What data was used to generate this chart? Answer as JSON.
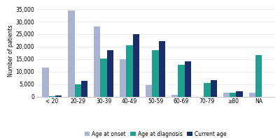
{
  "categories": [
    "< 20",
    "20-29",
    "30-39",
    "40-49",
    "50-59",
    "60-69",
    "70-79",
    "≥80",
    "NA"
  ],
  "age_at_onset": [
    11500,
    34500,
    28000,
    15000,
    4500,
    700,
    0,
    1500,
    1500
  ],
  "age_at_diagnosis": [
    300,
    4800,
    15200,
    20500,
    18700,
    12700,
    5400,
    1500,
    16500
  ],
  "current_age": [
    500,
    6200,
    18700,
    25100,
    22300,
    14000,
    6500,
    2000,
    0
  ],
  "color_onset": "#aab4d0",
  "color_diagnosis": "#1fa090",
  "color_current": "#1a2e6a",
  "ylabel": "Number of patients",
  "yticks": [
    0,
    5000,
    10000,
    15000,
    20000,
    25000,
    30000,
    35000
  ],
  "ylim": [
    0,
    37000
  ],
  "legend_labels": [
    "Age at onset",
    "Age at diagnosis",
    "Current age"
  ],
  "background_color": "#ffffff",
  "grid_color": "#e8e8e8"
}
